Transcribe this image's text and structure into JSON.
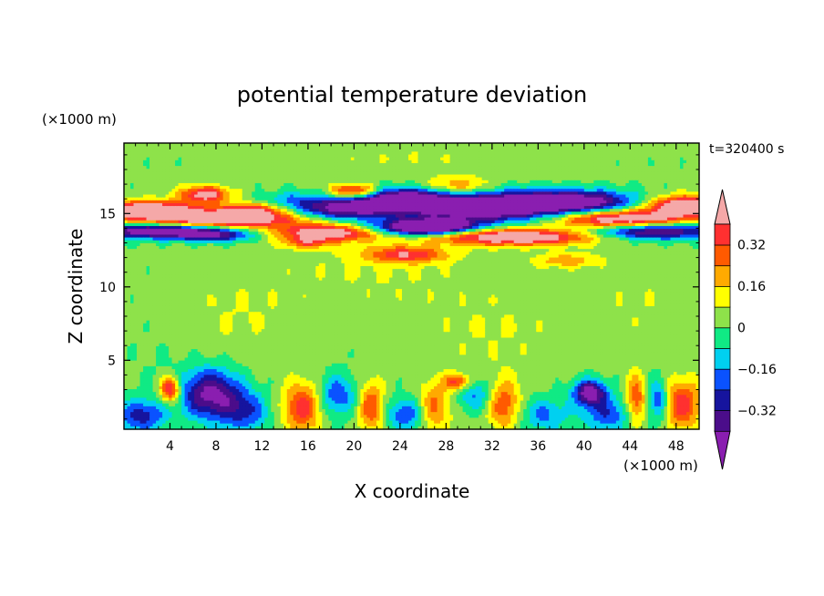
{
  "chart_data": {
    "type": "heatmap",
    "title": "potential temperature deviation",
    "xlabel": "X coordinate",
    "ylabel": "Z coordinate",
    "x_unit": "(×1000 m)",
    "y_unit": "(×1000 m)",
    "time_label": "t=320400 s",
    "xlim": [
      0,
      50
    ],
    "ylim": [
      0.3,
      19.8
    ],
    "x_ticks": [
      "4",
      "8",
      "12",
      "16",
      "20",
      "24",
      "28",
      "32",
      "36",
      "40",
      "44",
      "48"
    ],
    "y_ticks": [
      "5",
      "10",
      "15"
    ],
    "colorbar": {
      "labels": [
        "0.32",
        "0.16",
        "0",
        "−0.16",
        "−0.32"
      ],
      "label_levels": [
        0.32,
        0.16,
        0,
        -0.16,
        -0.32
      ],
      "levels": [
        -0.4,
        -0.32,
        -0.24,
        -0.16,
        -0.08,
        0,
        0.08,
        0.16,
        0.24,
        0.32,
        0.4
      ],
      "colors": [
        "#8a1eb0",
        "#4b0d8a",
        "#16149e",
        "#0a52ff",
        "#00d0f0",
        "#10ea84",
        "#8ee24a",
        "#ffff00",
        "#ffaa00",
        "#ff5a00",
        "#ff3030",
        "#f5a8a8"
      ]
    },
    "fields": {
      "background_value": 0.02,
      "blobs": [
        {
          "x": 2,
          "z": 15.2,
          "sx": 3.2,
          "sz": 0.45,
          "v": 0.6
        },
        {
          "x": 9,
          "z": 14.6,
          "sx": 4.5,
          "sz": 0.4,
          "v": 0.55
        },
        {
          "x": 18,
          "z": 13.7,
          "sx": 3.5,
          "sz": 0.4,
          "v": 0.5
        },
        {
          "x": 34,
          "z": 13.4,
          "sx": 5,
          "sz": 0.4,
          "v": 0.55
        },
        {
          "x": 43,
          "z": 14.6,
          "sx": 4,
          "sz": 0.45,
          "v": 0.55
        },
        {
          "x": 49,
          "z": 15.5,
          "sx": 2.5,
          "sz": 0.5,
          "v": 0.6
        },
        {
          "x": 3,
          "z": 13.8,
          "sx": 4,
          "sz": 0.35,
          "v": -0.55
        },
        {
          "x": 8,
          "z": 13.5,
          "sx": 2.5,
          "sz": 0.3,
          "v": -0.3
        },
        {
          "x": 19,
          "z": 15.3,
          "sx": 3,
          "sz": 0.5,
          "v": -0.45
        },
        {
          "x": 24,
          "z": 16,
          "sx": 3,
          "sz": 0.5,
          "v": -0.5
        },
        {
          "x": 25,
          "z": 14,
          "sx": 3,
          "sz": 0.4,
          "v": -0.55
        },
        {
          "x": 31,
          "z": 15.4,
          "sx": 5,
          "sz": 0.7,
          "v": -0.6
        },
        {
          "x": 39,
          "z": 15.8,
          "sx": 4,
          "sz": 0.55,
          "v": -0.5
        },
        {
          "x": 46,
          "z": 13.8,
          "sx": 4,
          "sz": 0.4,
          "v": -0.5
        },
        {
          "x": 28,
          "z": 14.1,
          "sx": 2,
          "sz": 0.3,
          "v": -0.35
        },
        {
          "x": 7,
          "z": 16.3,
          "sx": 1.5,
          "sz": 0.4,
          "v": 0.45
        },
        {
          "x": 20,
          "z": 16.5,
          "sx": 1.5,
          "sz": 0.35,
          "v": 0.45
        },
        {
          "x": 29,
          "z": 16.8,
          "sx": 2,
          "sz": 0.5,
          "v": 0.25
        },
        {
          "x": 11,
          "z": 15.2,
          "sx": 2,
          "sz": 0.35,
          "v": 0.35
        },
        {
          "x": 24.5,
          "z": 12.2,
          "sx": 2.5,
          "sz": 0.4,
          "v": 0.35
        },
        {
          "x": 38.5,
          "z": 11.8,
          "sx": 2,
          "sz": 0.35,
          "v": 0.2
        },
        {
          "x": 16,
          "z": 13,
          "sx": 1.5,
          "sz": 0.3,
          "v": 0.25
        },
        {
          "x": 15,
          "z": 16,
          "sx": 2,
          "sz": 0.4,
          "v": -0.15
        },
        {
          "x": 1.5,
          "z": 1.2,
          "sx": 1.5,
          "sz": 0.8,
          "v": -0.3
        },
        {
          "x": 4,
          "z": 3,
          "sx": 0.6,
          "sz": 0.6,
          "v": 0.45
        },
        {
          "x": 7.5,
          "z": 2.7,
          "sx": 1.8,
          "sz": 1.2,
          "v": -0.45
        },
        {
          "x": 10.5,
          "z": 1.5,
          "sx": 1.5,
          "sz": 1,
          "v": -0.25
        },
        {
          "x": 15.5,
          "z": 1.8,
          "sx": 1.2,
          "sz": 1.2,
          "v": 0.35
        },
        {
          "x": 18.5,
          "z": 2.6,
          "sx": 1.2,
          "sz": 1,
          "v": -0.25
        },
        {
          "x": 21.5,
          "z": 1.8,
          "sx": 0.8,
          "sz": 1.2,
          "v": 0.3
        },
        {
          "x": 24.5,
          "z": 1.3,
          "sx": 1.2,
          "sz": 0.8,
          "v": -0.25
        },
        {
          "x": 27,
          "z": 1.8,
          "sx": 1,
          "sz": 1.2,
          "v": 0.25
        },
        {
          "x": 30.5,
          "z": 2.7,
          "sx": 1.2,
          "sz": 0.8,
          "v": -0.2
        },
        {
          "x": 33,
          "z": 2,
          "sx": 1,
          "sz": 1.2,
          "v": 0.3
        },
        {
          "x": 36.5,
          "z": 1.3,
          "sx": 1.5,
          "sz": 0.8,
          "v": -0.2
        },
        {
          "x": 40.5,
          "z": 2.8,
          "sx": 1,
          "sz": 0.6,
          "v": -0.5
        },
        {
          "x": 42,
          "z": 1.3,
          "sx": 1.5,
          "sz": 0.8,
          "v": -0.25
        },
        {
          "x": 44.5,
          "z": 2.3,
          "sx": 0.6,
          "sz": 1.2,
          "v": 0.3
        },
        {
          "x": 48.5,
          "z": 2,
          "sx": 1.2,
          "sz": 1.2,
          "v": 0.35
        },
        {
          "x": 46.5,
          "z": 2.3,
          "sx": 0.6,
          "sz": 1,
          "v": -0.3
        },
        {
          "x": 29,
          "z": 3.5,
          "sx": 0.8,
          "sz": 0.4,
          "v": 0.35
        },
        {
          "x": 10,
          "z": 8,
          "sx": 4,
          "sz": 2,
          "v": 0.06
        },
        {
          "x": 32,
          "z": 7,
          "sx": 5,
          "sz": 2,
          "v": 0.06
        },
        {
          "x": 22,
          "z": 11,
          "sx": 6,
          "sz": 1.5,
          "v": 0.06
        },
        {
          "x": 45,
          "z": 9,
          "sx": 3,
          "sz": 2,
          "v": 0.05
        },
        {
          "x": 25,
          "z": 19,
          "sx": 8,
          "sz": 0.8,
          "v": 0.05
        },
        {
          "x": 3,
          "z": 5,
          "sx": 2,
          "sz": 2,
          "v": -0.02
        }
      ]
    }
  }
}
